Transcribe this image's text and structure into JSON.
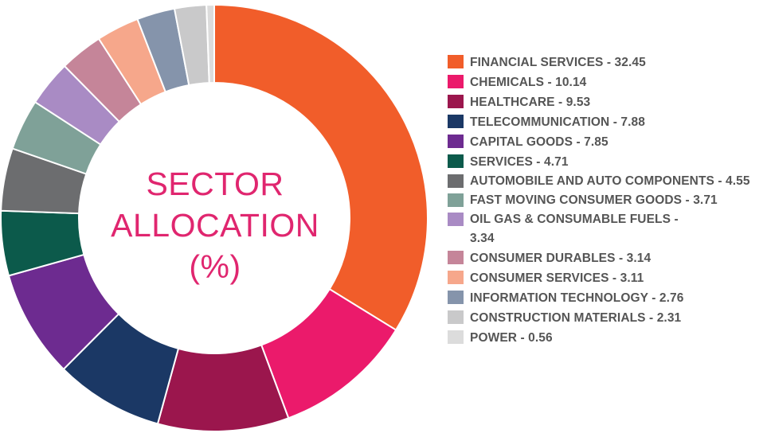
{
  "chart_data": {
    "type": "pie",
    "donut": true,
    "title": [
      "SECTOR",
      "ALLOCATION",
      "(%)"
    ],
    "legend_position": "right",
    "slices": [
      {
        "label": "FINANCIAL SERVICES - 32.45",
        "value": 32.45,
        "color": "#f15d2a"
      },
      {
        "label": "CHEMICALS - 10.14",
        "value": 10.14,
        "color": "#eb1a6b"
      },
      {
        "label": "HEALTHCARE - 9.53",
        "value": 9.53,
        "color": "#9b164d"
      },
      {
        "label": "TELECOMMUNICATION - 7.88",
        "value": 7.88,
        "color": "#1b3865"
      },
      {
        "label": "CAPITAL GOODS - 7.85",
        "value": 7.85,
        "color": "#6d2b90"
      },
      {
        "label": "SERVICES - 4.71",
        "value": 4.71,
        "color": "#0c5a4b"
      },
      {
        "label": "AUTOMOBILE AND AUTO COMPONENTS - 4.55",
        "value": 4.55,
        "color": "#6c6d6f"
      },
      {
        "label": "FAST MOVING CONSUMER GOODS - 3.71",
        "value": 3.71,
        "color": "#7fa198"
      },
      {
        "label": "OIL GAS & CONSUMABLE FUELS - 3.34",
        "value": 3.34,
        "color": "#a98bc4"
      },
      {
        "label": "CONSUMER DURABLES - 3.14",
        "value": 3.14,
        "color": "#c58599"
      },
      {
        "label": "CONSUMER SERVICES - 3.11",
        "value": 3.11,
        "color": "#f6a78b"
      },
      {
        "label": "INFORMATION TECHNOLOGY - 2.76",
        "value": 2.76,
        "color": "#8594ab"
      },
      {
        "label": "CONSTRUCTION MATERIALS - 2.31",
        "value": 2.31,
        "color": "#c9c9ca"
      },
      {
        "label": "POWER - 0.56",
        "value": 0.56,
        "color": "#dcdcdc"
      }
    ]
  }
}
